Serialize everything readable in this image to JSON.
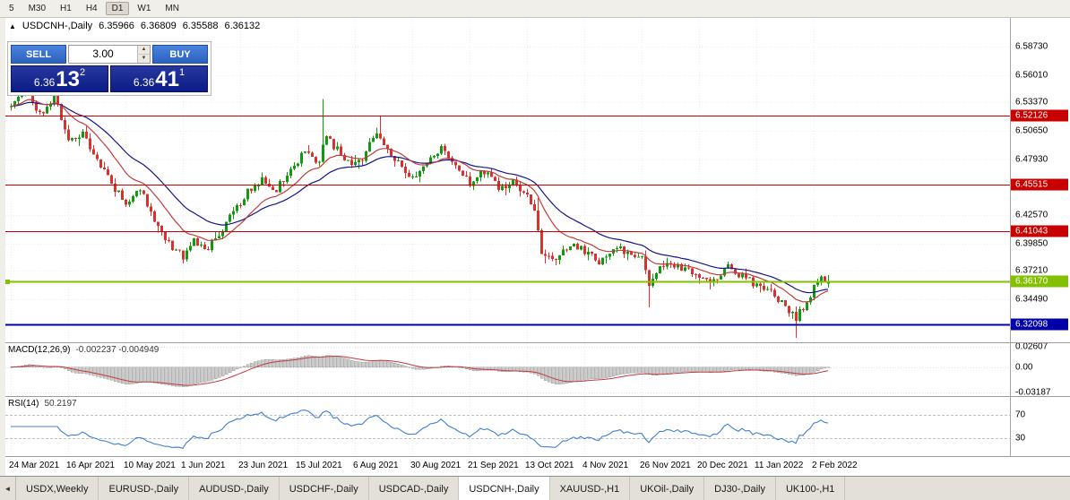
{
  "toolbar": {
    "timeframes": [
      "5",
      "M30",
      "H1",
      "H4",
      "D1",
      "W1",
      "MN"
    ],
    "active": "D1"
  },
  "chart_header": {
    "marker": "▲",
    "symbol": "USDCNH-,Daily",
    "open": "6.35966",
    "high": "6.36809",
    "low": "6.35588",
    "close": "6.36132"
  },
  "trade_panel": {
    "sell_label": "SELL",
    "buy_label": "BUY",
    "volume": "3.00",
    "spin_up": "▲",
    "spin_down": "▼",
    "sell_price": {
      "prefix": "6.36",
      "big": "13",
      "sup": "2"
    },
    "buy_price": {
      "prefix": "6.36",
      "big": "41",
      "sup": "1"
    }
  },
  "price_axis": {
    "ticks": [
      "6.58730",
      "6.56010",
      "6.53370",
      "6.50650",
      "6.47930",
      "6.42570",
      "6.39850",
      "6.37210",
      "6.34490"
    ],
    "badges": [
      {
        "label": "6.52126",
        "price": 6.52126,
        "color": "#c80000"
      },
      {
        "label": "6.45515",
        "price": 6.45515,
        "color": "#c80000"
      },
      {
        "label": "6.41043",
        "price": 6.41043,
        "color": "#c80000"
      },
      {
        "label": "6.36170",
        "price": 6.3617,
        "color": "#82c000"
      },
      {
        "label": "6.32098",
        "price": 6.32098,
        "color": "#0000a8"
      }
    ]
  },
  "macd": {
    "title": "MACD(12,26,9)",
    "values": "-0.002237 -0.004949",
    "ticks": [
      {
        "label": "0.02607",
        "value": 0.02607
      },
      {
        "label": "0.00",
        "value": 0
      },
      {
        "label": "-0.03187",
        "value": -0.03187
      }
    ]
  },
  "rsi": {
    "title": "RSI(14)",
    "value": "50.2197",
    "ticks": [
      {
        "label": "70",
        "value": 70
      },
      {
        "label": "30",
        "value": 30
      }
    ]
  },
  "date_axis": [
    "24 Mar 2021",
    "16 Apr 2021",
    "10 May 2021",
    "1 Jun 2021",
    "23 Jun 2021",
    "15 Jul 2021",
    "6 Aug 2021",
    "30 Aug 2021",
    "21 Sep 2021",
    "13 Oct 2021",
    "4 Nov 2021",
    "26 Nov 2021",
    "20 Dec 2021",
    "11 Jan 2022",
    "2 Feb 2022"
  ],
  "tabs": {
    "scroll_left": "◄",
    "items": [
      "USDX,Weekly",
      "EURUSD-,Daily",
      "AUDUSD-,Daily",
      "USDCHF-,Daily",
      "USDCAD-,Daily",
      "USDCNH-,Daily",
      "XAUUSD-,H1",
      "UKOil-,Daily",
      "DJ30-,Daily",
      "UK100-,H1"
    ],
    "active": "USDCNH-,Daily"
  },
  "chart_data": {
    "type": "candlestick",
    "symbol": "USDCNH-",
    "timeframe": "Daily",
    "bars": 229,
    "bars_per_date_tick": 16,
    "y_range": [
      6.3035,
      6.615
    ],
    "last_candle": {
      "o": 6.35966,
      "h": 6.36809,
      "l": 6.35588,
      "c": 6.36132
    },
    "close_path_anchors": [
      [
        0,
        6.53
      ],
      [
        4,
        6.549
      ],
      [
        8,
        6.522
      ],
      [
        12,
        6.541
      ],
      [
        16,
        6.498
      ],
      [
        20,
        6.505
      ],
      [
        24,
        6.478
      ],
      [
        28,
        6.456
      ],
      [
        32,
        6.436
      ],
      [
        36,
        6.452
      ],
      [
        40,
        6.42
      ],
      [
        44,
        6.398
      ],
      [
        48,
        6.386
      ],
      [
        51,
        6.404
      ],
      [
        54,
        6.391
      ],
      [
        58,
        6.407
      ],
      [
        62,
        6.428
      ],
      [
        66,
        6.448
      ],
      [
        70,
        6.461
      ],
      [
        74,
        6.451
      ],
      [
        78,
        6.469
      ],
      [
        82,
        6.488
      ],
      [
        86,
        6.477
      ],
      [
        88,
        6.503
      ],
      [
        90,
        6.492
      ],
      [
        94,
        6.476
      ],
      [
        98,
        6.481
      ],
      [
        102,
        6.505
      ],
      [
        105,
        6.489
      ],
      [
        108,
        6.477
      ],
      [
        112,
        6.461
      ],
      [
        116,
        6.477
      ],
      [
        120,
        6.49
      ],
      [
        124,
        6.471
      ],
      [
        128,
        6.457
      ],
      [
        132,
        6.467
      ],
      [
        136,
        6.451
      ],
      [
        140,
        6.457
      ],
      [
        144,
        6.447
      ],
      [
        146,
        6.428
      ],
      [
        148,
        6.391
      ],
      [
        152,
        6.385
      ],
      [
        156,
        6.398
      ],
      [
        160,
        6.391
      ],
      [
        164,
        6.382
      ],
      [
        168,
        6.395
      ],
      [
        172,
        6.389
      ],
      [
        176,
        6.383
      ],
      [
        178,
        6.355
      ],
      [
        180,
        6.371
      ],
      [
        184,
        6.379
      ],
      [
        188,
        6.373
      ],
      [
        192,
        6.367
      ],
      [
        196,
        6.361
      ],
      [
        200,
        6.376
      ],
      [
        204,
        6.367
      ],
      [
        208,
        6.359
      ],
      [
        212,
        6.351
      ],
      [
        216,
        6.339
      ],
      [
        219,
        6.327
      ],
      [
        221,
        6.337
      ],
      [
        224,
        6.355
      ],
      [
        226,
        6.366
      ],
      [
        228,
        6.361
      ]
    ],
    "spikes": [
      [
        4,
        "h",
        6.557
      ],
      [
        12,
        "h",
        6.553
      ],
      [
        87,
        "h",
        6.537
      ],
      [
        103,
        "h",
        6.521
      ],
      [
        147,
        "h",
        6.442
      ],
      [
        178,
        "l",
        6.337
      ],
      [
        219,
        "l",
        6.308
      ]
    ],
    "horizontal_levels": [
      {
        "price": 6.52126,
        "color": "#c80000",
        "width": 1
      },
      {
        "price": 6.45515,
        "color": "#c80000",
        "width": 1
      },
      {
        "price": 6.41043,
        "color": "#c80000",
        "width": 1
      },
      {
        "price": 6.3617,
        "color": "#82c000",
        "width": 2,
        "role": "current"
      },
      {
        "price": 6.32098,
        "color": "#0000a8",
        "width": 2
      }
    ],
    "moving_averages": [
      {
        "period": 14,
        "color": "#c23b3b"
      },
      {
        "period": 28,
        "color": "#15158a"
      }
    ],
    "macd": {
      "fast": 12,
      "slow": 26,
      "signal": 9,
      "axis_range": [
        -0.0368,
        0.0302
      ]
    },
    "rsi": {
      "period": 14,
      "range": [
        0,
        100
      ],
      "levels": [
        30,
        70
      ]
    },
    "colors": {
      "up": "#119a11",
      "down": "#d93030",
      "hist": "#c9c9c9",
      "hist_border": "#9f9f9f",
      "macd_signal": "#c23b3b",
      "rsi_line": "#3f7fd0",
      "grid": "#ebebeb"
    }
  }
}
